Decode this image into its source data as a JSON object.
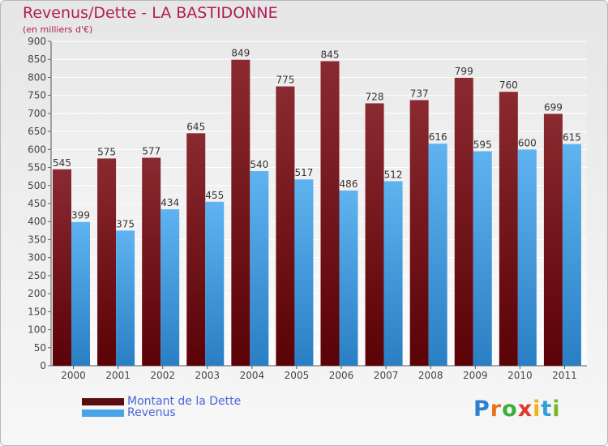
{
  "chart_data": {
    "type": "bar",
    "title": "Revenus/Dette - LA BASTIDONNE",
    "subtitle": "(en milliers d'€)",
    "categories": [
      "2000",
      "2001",
      "2002",
      "2003",
      "2004",
      "2005",
      "2006",
      "2007",
      "2008",
      "2009",
      "2010",
      "2011"
    ],
    "series": [
      {
        "name": "Montant de la Dette",
        "color": "#6b0f14",
        "values": [
          545,
          575,
          577,
          645,
          849,
          775,
          845,
          728,
          737,
          799,
          760,
          699
        ]
      },
      {
        "name": "Revenus",
        "color": "#4aa3e8",
        "values": [
          399,
          375,
          434,
          455,
          540,
          517,
          486,
          512,
          616,
          595,
          600,
          615
        ]
      }
    ],
    "ylim": [
      0,
      900
    ],
    "ytick_step": 50,
    "grid": true,
    "legend_position": "bottom-left",
    "logo_text": "Proxiti"
  }
}
